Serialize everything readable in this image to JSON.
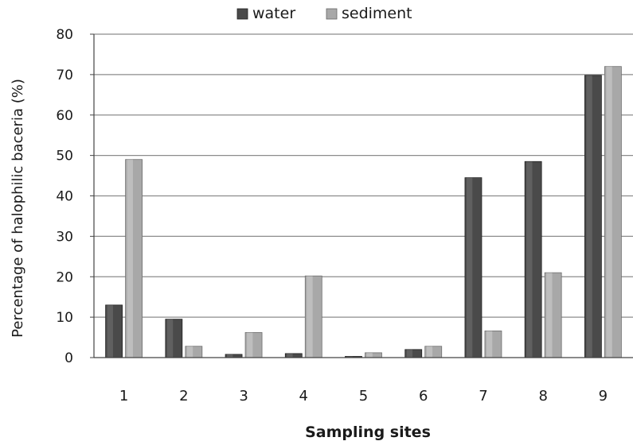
{
  "chart_data": {
    "type": "bar",
    "title": "",
    "xlabel": "Sampling sites",
    "ylabel": "Percentage of halophilic baceria (%)",
    "ylim": [
      0,
      80
    ],
    "yticks": [
      0,
      10,
      20,
      30,
      40,
      50,
      60,
      70,
      80
    ],
    "grid": true,
    "legend_position": "top",
    "categories": [
      "1",
      "2",
      "3",
      "4",
      "5",
      "6",
      "7",
      "8",
      "9"
    ],
    "series": [
      {
        "name": "water",
        "color": "#4a4a4a",
        "values": [
          13,
          9.5,
          0.8,
          1,
          0.3,
          2,
          44.5,
          48.5,
          69.8
        ]
      },
      {
        "name": "sediment",
        "color": "#a8a8a8",
        "values": [
          49,
          2.8,
          6.2,
          20.2,
          1.2,
          2.8,
          6.6,
          21,
          72
        ]
      }
    ]
  }
}
